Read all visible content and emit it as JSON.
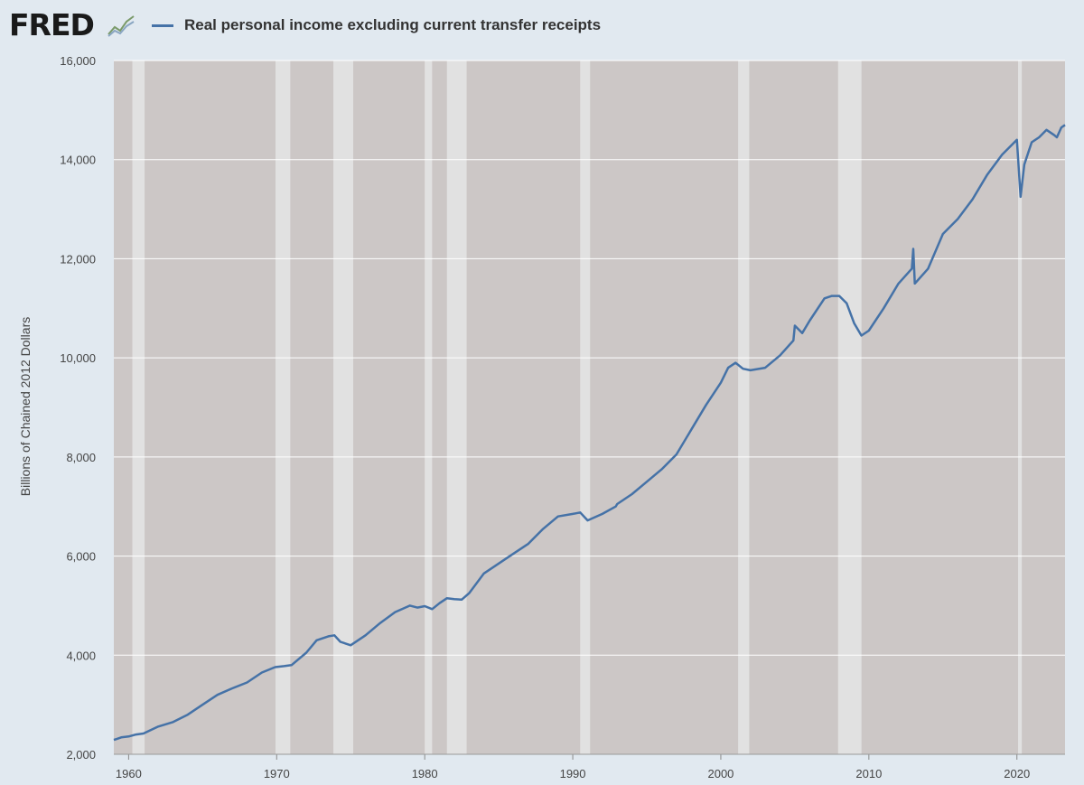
{
  "header": {
    "logo": "FRED",
    "legend_label": "Real personal income excluding current transfer receipts"
  },
  "colors": {
    "page_background": "#e1e9f0",
    "plot_background": "#ccc7c6",
    "recession_band": "#e1e1e1",
    "series_line": "#4572a7",
    "grid": "#ffffff"
  },
  "chart_data": {
    "type": "line",
    "title": "",
    "ylabel": "Billions of Chained 2012 Dollars",
    "xlabel": "",
    "xlim": [
      1959.0,
      2023.25
    ],
    "ylim": [
      2000,
      16000
    ],
    "y_ticks": [
      2000,
      4000,
      6000,
      8000,
      10000,
      12000,
      14000,
      16000
    ],
    "y_tick_labels": [
      "2,000",
      "4,000",
      "6,000",
      "8,000",
      "10,000",
      "12,000",
      "14,000",
      "16,000"
    ],
    "x_ticks": [
      1960,
      1970,
      1980,
      1990,
      2000,
      2010,
      2020
    ],
    "x_tick_labels": [
      "1960",
      "1970",
      "1980",
      "1990",
      "2000",
      "2010",
      "2020"
    ],
    "grid": "horizontal",
    "legend_position": "top-left",
    "recessions": [
      [
        1960.25,
        1961.08
      ],
      [
        1969.92,
        1970.92
      ],
      [
        1973.83,
        1975.17
      ],
      [
        1980.0,
        1980.5
      ],
      [
        1981.5,
        1982.83
      ],
      [
        1990.5,
        1991.17
      ],
      [
        2001.17,
        2001.92
      ],
      [
        2007.92,
        2009.5
      ],
      [
        2020.08,
        2020.33
      ]
    ],
    "series": [
      {
        "name": "Real personal income excluding current transfer receipts",
        "x": [
          1959.0,
          1959.5,
          1960.0,
          1960.5,
          1961.0,
          1961.5,
          1962.0,
          1963.0,
          1964.0,
          1965.0,
          1966.0,
          1967.0,
          1968.0,
          1969.0,
          1969.9,
          1970.5,
          1971.0,
          1972.0,
          1972.7,
          1973.5,
          1973.9,
          1974.3,
          1975.0,
          1976.0,
          1977.0,
          1978.0,
          1979.0,
          1979.5,
          1980.0,
          1980.5,
          1981.0,
          1981.5,
          1982.0,
          1982.5,
          1983.0,
          1984.0,
          1985.0,
          1986.0,
          1987.0,
          1988.0,
          1989.0,
          1990.0,
          1990.5,
          1991.0,
          1992.0,
          1992.9,
          1993.0,
          1994.0,
          1995.0,
          1996.0,
          1997.0,
          1998.0,
          1999.0,
          2000.0,
          2000.5,
          2001.0,
          2001.5,
          2002.0,
          2003.0,
          2004.0,
          2004.9,
          2005.0,
          2005.5,
          2006.0,
          2007.0,
          2007.5,
          2008.0,
          2008.5,
          2009.0,
          2009.5,
          2010.0,
          2011.0,
          2012.0,
          2012.9,
          2013.0,
          2013.1,
          2014.0,
          2015.0,
          2016.0,
          2017.0,
          2018.0,
          2019.0,
          2019.5,
          2020.0,
          2020.25,
          2020.5,
          2021.0,
          2021.5,
          2022.0,
          2022.5,
          2022.7,
          2023.0,
          2023.25
        ],
        "values": [
          2290,
          2340,
          2360,
          2400,
          2420,
          2490,
          2560,
          2650,
          2800,
          3000,
          3200,
          3330,
          3450,
          3650,
          3760,
          3780,
          3800,
          4050,
          4300,
          4380,
          4400,
          4270,
          4200,
          4400,
          4650,
          4870,
          5000,
          4960,
          4990,
          4930,
          5050,
          5150,
          5130,
          5120,
          5250,
          5650,
          5850,
          6050,
          6250,
          6550,
          6800,
          6850,
          6880,
          6720,
          6850,
          7000,
          7050,
          7250,
          7500,
          7750,
          8050,
          8550,
          9050,
          9500,
          9800,
          9900,
          9780,
          9750,
          9800,
          10050,
          10350,
          10650,
          10500,
          10750,
          11200,
          11250,
          11250,
          11100,
          10700,
          10450,
          10550,
          11000,
          11500,
          11800,
          12200,
          11500,
          11800,
          12500,
          12800,
          13200,
          13700,
          14100,
          14250,
          14400,
          13250,
          13900,
          14350,
          14450,
          14600,
          14500,
          14450,
          14650,
          14700
        ]
      }
    ]
  }
}
